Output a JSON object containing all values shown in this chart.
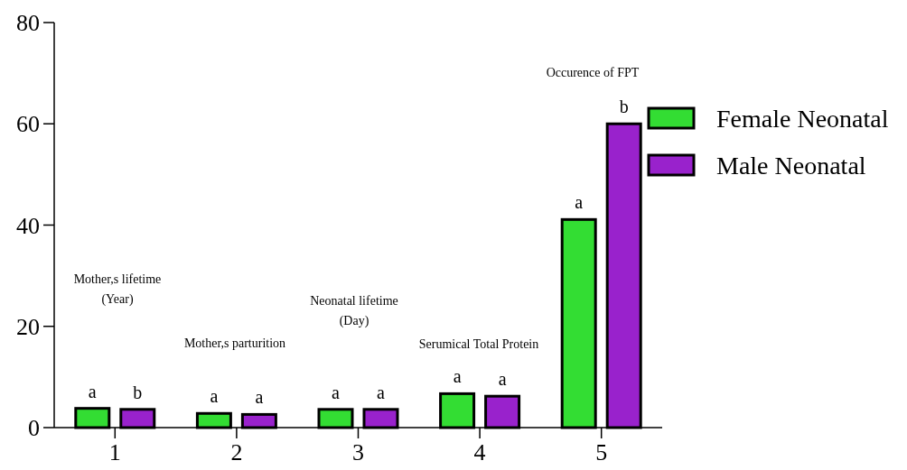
{
  "chart_data": {
    "type": "bar",
    "categories": [
      "1",
      "2",
      "3",
      "4",
      "5"
    ],
    "series": [
      {
        "name": "Female Neonatal",
        "color": "#33dd33",
        "values": [
          3.8,
          2.8,
          3.6,
          6.7,
          41.1
        ],
        "value_labels": [
          "a",
          "a",
          "a",
          "a",
          "a"
        ]
      },
      {
        "name": "Male Neonatal",
        "color": "#9922cc",
        "values": [
          3.6,
          2.6,
          3.6,
          6.2,
          60
        ],
        "value_labels": [
          "b",
          "a",
          "a",
          "a",
          "b"
        ]
      }
    ],
    "ylim": [
      0,
      80
    ],
    "yticks": [
      0,
      20,
      40,
      60,
      80
    ],
    "grid": false,
    "legend": "top right",
    "annotations": [
      "Mother,s lifetime\n(Year)",
      "Mother,s parturition",
      "Neonatal lifetime\n(Day)",
      "Serumical Total Protein",
      "Occurence of FPT"
    ]
  }
}
